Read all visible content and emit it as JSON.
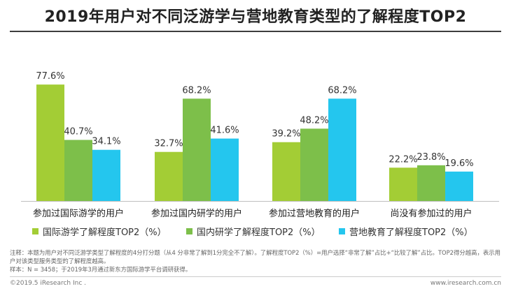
{
  "title": "2019年用户对不同泛游学与营地教育类型的了解程度TOP2",
  "chart_data": {
    "type": "bar",
    "categories": [
      "参加过国际游学的用户",
      "参加过国内研学的用户",
      "参加过营地教育的用户",
      "尚没有参加过的用户"
    ],
    "series": [
      {
        "name": "国际游学了解程度TOP2（%）",
        "color": "#a3cd35",
        "values": [
          77.6,
          32.7,
          39.2,
          22.2
        ]
      },
      {
        "name": "国内研学了解程度TOP2（%）",
        "color": "#7dbf4a",
        "values": [
          40.7,
          68.2,
          48.2,
          23.8
        ]
      },
      {
        "name": "营地教育了解程度TOP2（%）",
        "color": "#24c6ee",
        "values": [
          34.1,
          41.6,
          68.2,
          19.6
        ]
      }
    ],
    "value_labels": [
      [
        "77.6%",
        "32.7%",
        "39.2%",
        "22.2%"
      ],
      [
        "40.7%",
        "68.2%",
        "48.2%",
        "23.8%"
      ],
      [
        "34.1%",
        "41.6%",
        "68.2%",
        "19.6%"
      ]
    ],
    "ylim": [
      0,
      90
    ],
    "grid": false,
    "legend_position": "bottom"
  },
  "note": "注释：本题为用户对不同泛游学类型了解程度的4分打分题（从4 分非常了解到1分完全不了解）。了解程度TOP2（%）=用户选择“非常了解”占比+“比较了解”占比。TOP2得分越高，表示用户对该类型服务类型的了解程度越高。",
  "sample": "样本：N = 3458；于2019年3月通过新东方国际游学平台调研获得。",
  "footer": {
    "copyright": "©2019.5 iResearch Inc .",
    "website": "www.iresearch.com.cn"
  }
}
